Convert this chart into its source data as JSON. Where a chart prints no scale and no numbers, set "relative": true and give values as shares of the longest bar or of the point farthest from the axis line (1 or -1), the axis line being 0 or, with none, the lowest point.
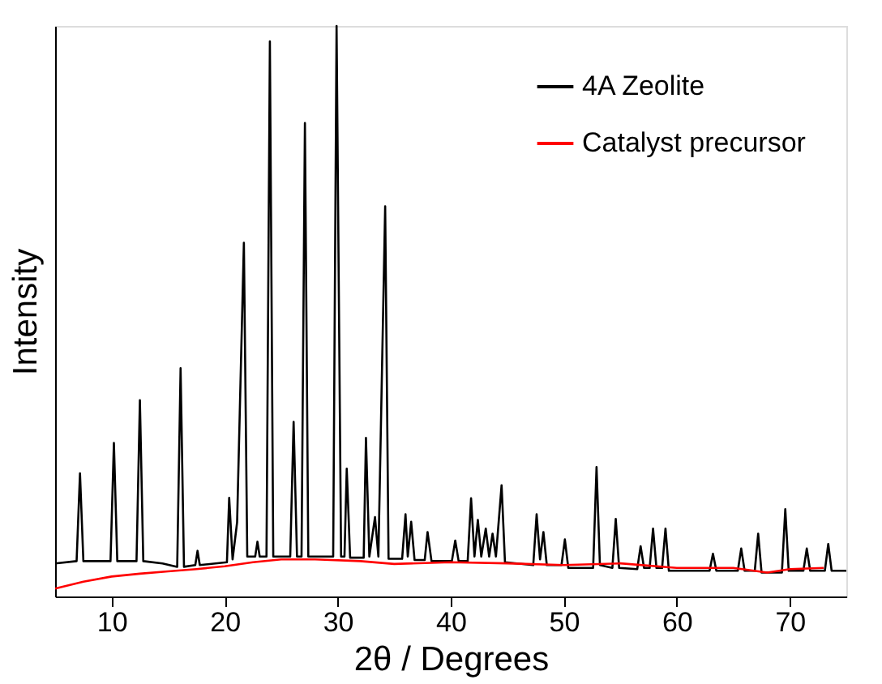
{
  "chart_data": {
    "type": "line",
    "relative": true,
    "xlabel": "2θ / Degrees",
    "ylabel": "Intensity",
    "xlim": [
      5,
      75
    ],
    "xticks": [
      10,
      20,
      30,
      40,
      50,
      60,
      70
    ],
    "grid": false,
    "legend": "top right",
    "marker": "none",
    "series": [
      {
        "name": "4A Zeolite",
        "color": "#000000",
        "x": [
          5.0,
          6.9,
          7.2,
          7.5,
          9.9,
          10.2,
          10.5,
          12.2,
          12.5,
          12.8,
          14.5,
          15.8,
          16.1,
          16.4,
          17.4,
          17.6,
          17.8,
          20.2,
          20.4,
          20.7,
          21.1,
          21.7,
          22.0,
          22.7,
          22.9,
          23.1,
          23.7,
          24.0,
          24.3,
          25.8,
          26.1,
          26.4,
          26.8,
          27.1,
          27.4,
          29.6,
          29.9,
          30.3,
          30.6,
          30.8,
          31.1,
          32.3,
          32.5,
          32.8,
          33.3,
          33.6,
          34.2,
          34.5,
          35.7,
          36.0,
          36.2,
          36.5,
          36.8,
          37.7,
          37.95,
          38.3,
          40.1,
          40.4,
          40.7,
          41.5,
          41.8,
          42.1,
          42.4,
          42.7,
          43.1,
          43.4,
          43.7,
          44.0,
          44.5,
          44.8,
          47.3,
          47.6,
          47.9,
          48.2,
          48.5,
          49.8,
          50.1,
          50.4,
          52.6,
          52.9,
          53.2,
          54.3,
          54.6,
          54.9,
          56.5,
          56.8,
          57.1,
          57.6,
          57.9,
          58.2,
          58.7,
          59.0,
          59.3,
          62.9,
          63.2,
          63.5,
          65.4,
          65.7,
          66.0,
          66.9,
          67.2,
          67.5,
          69.3,
          69.6,
          69.9,
          71.2,
          71.5,
          71.8,
          73.1,
          73.4,
          73.7,
          75.0
        ],
        "values": [
          0.058,
          0.062,
          0.216,
          0.062,
          0.062,
          0.269,
          0.062,
          0.062,
          0.344,
          0.062,
          0.058,
          0.052,
          0.4,
          0.052,
          0.055,
          0.08,
          0.055,
          0.06,
          0.173,
          0.065,
          0.13,
          0.62,
          0.07,
          0.07,
          0.096,
          0.07,
          0.07,
          0.973,
          0.07,
          0.07,
          0.306,
          0.07,
          0.07,
          0.83,
          0.07,
          0.07,
          1.0,
          0.07,
          0.07,
          0.224,
          0.068,
          0.068,
          0.278,
          0.07,
          0.139,
          0.07,
          0.684,
          0.066,
          0.066,
          0.144,
          0.07,
          0.131,
          0.064,
          0.064,
          0.113,
          0.062,
          0.062,
          0.098,
          0.062,
          0.062,
          0.172,
          0.07,
          0.134,
          0.07,
          0.119,
          0.07,
          0.11,
          0.07,
          0.195,
          0.06,
          0.055,
          0.144,
          0.065,
          0.113,
          0.055,
          0.055,
          0.1,
          0.05,
          0.05,
          0.227,
          0.055,
          0.05,
          0.136,
          0.05,
          0.048,
          0.088,
          0.05,
          0.05,
          0.119,
          0.05,
          0.05,
          0.119,
          0.045,
          0.045,
          0.075,
          0.045,
          0.045,
          0.084,
          0.045,
          0.045,
          0.11,
          0.042,
          0.042,
          0.153,
          0.045,
          0.045,
          0.084,
          0.045,
          0.045,
          0.092,
          0.045,
          0.045
        ]
      },
      {
        "name": "Catalyst precursor",
        "color": "#ff0000",
        "x": [
          5,
          7.5,
          10,
          12.5,
          15,
          17.5,
          20,
          22.5,
          25,
          28,
          32,
          35,
          40,
          45,
          50,
          55,
          60,
          65,
          68,
          70,
          73
        ],
        "values": [
          0.014,
          0.026,
          0.035,
          0.04,
          0.044,
          0.048,
          0.053,
          0.06,
          0.065,
          0.065,
          0.062,
          0.057,
          0.06,
          0.058,
          0.055,
          0.058,
          0.05,
          0.05,
          0.042,
          0.048,
          0.05
        ]
      }
    ]
  }
}
